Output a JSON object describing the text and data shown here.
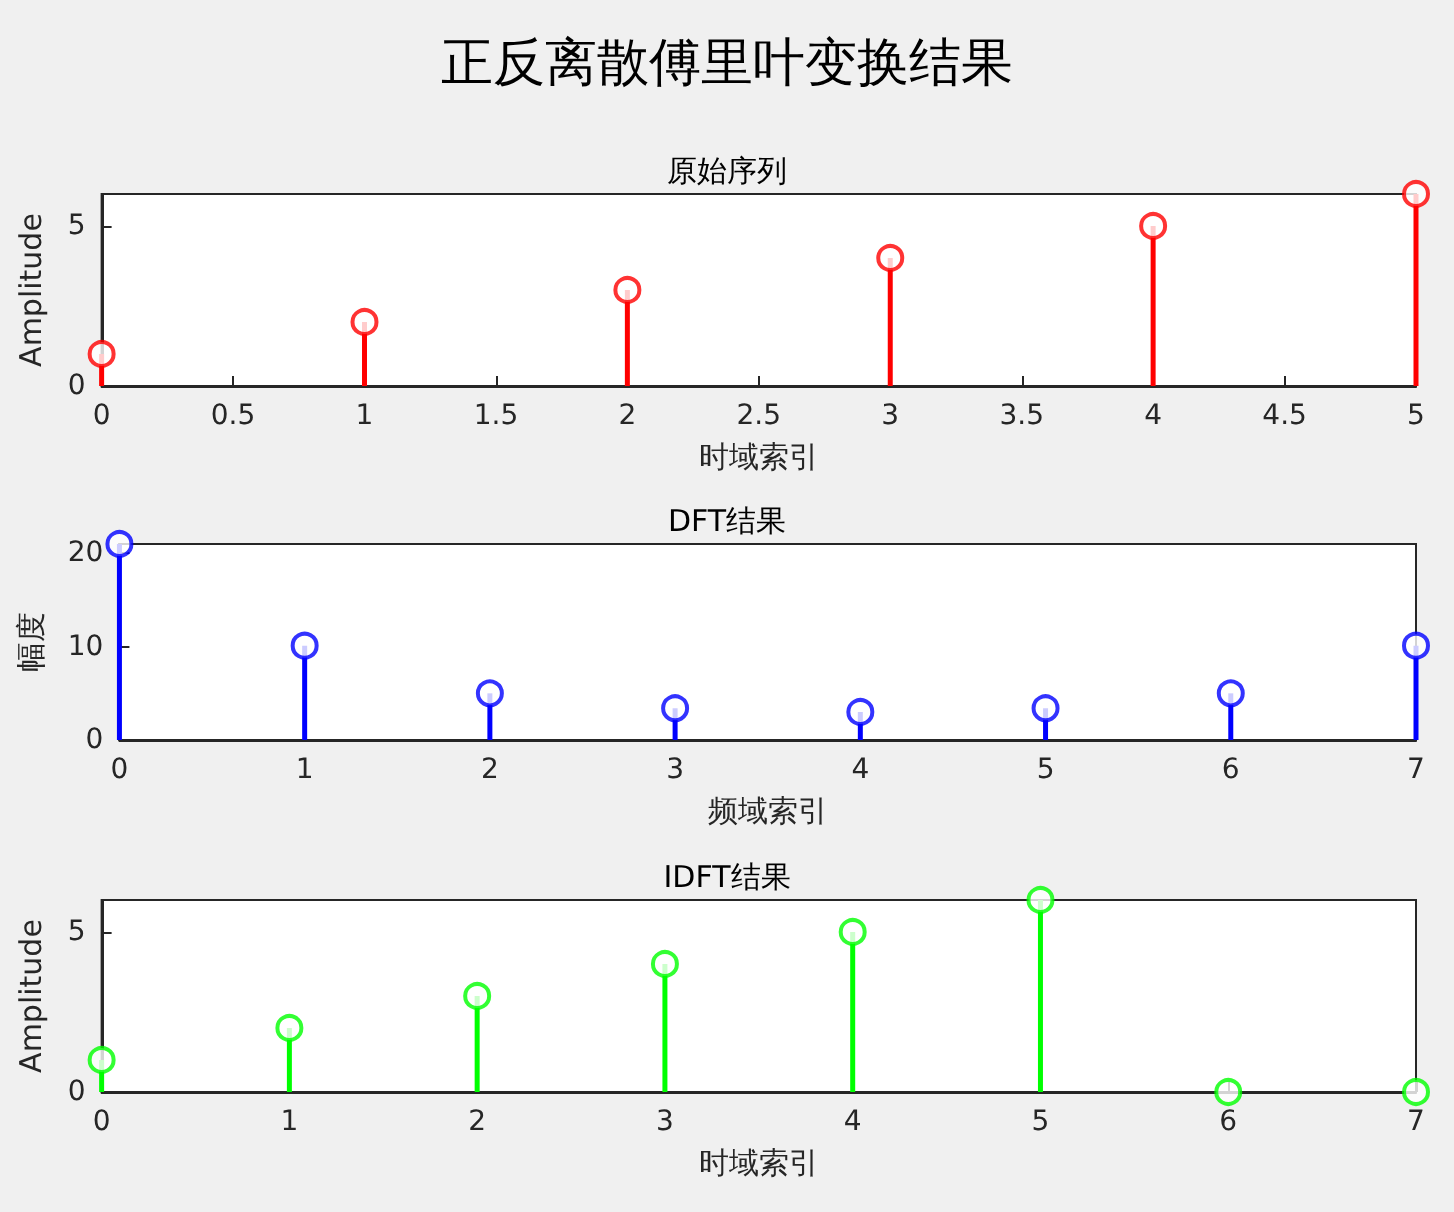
{
  "chart_data": [
    {
      "type": "lollipop",
      "title": "正反离散傅里叶变换结果",
      "subtitle": "原始序列",
      "xlabel": "时域索引",
      "ylabel": "Amplitude",
      "x": [
        0,
        1,
        2,
        3,
        4,
        5
      ],
      "values": [
        1,
        2,
        3,
        4,
        5,
        6
      ],
      "color": "#ff0000",
      "marker": "circle",
      "xlim": [
        0,
        5
      ],
      "ylim": [
        0,
        6
      ],
      "xticks": [
        0,
        0.5,
        1,
        1.5,
        2,
        2.5,
        3,
        3.5,
        4,
        4.5,
        5
      ],
      "yticks": [
        0,
        5
      ]
    },
    {
      "type": "lollipop",
      "title": "DFT结果",
      "xlabel": "频域索引",
      "ylabel": "幅度",
      "x": [
        0,
        1,
        2,
        3,
        4,
        5,
        6,
        7
      ],
      "values": [
        21,
        10.1,
        5,
        3.4,
        3,
        3.4,
        5,
        10.1
      ],
      "color": "#0000ff",
      "marker": "circle",
      "xlim": [
        0,
        7
      ],
      "ylim": [
        0,
        21
      ],
      "xticks": [
        0,
        1,
        2,
        3,
        4,
        5,
        6,
        7
      ],
      "yticks": [
        0,
        10,
        20
      ]
    },
    {
      "type": "lollipop",
      "title": "IDFT结果",
      "xlabel": "时域索引",
      "ylabel": "Amplitude",
      "x": [
        0,
        1,
        2,
        3,
        4,
        5,
        6,
        7
      ],
      "values": [
        1,
        2,
        3,
        4,
        5,
        6,
        0,
        0
      ],
      "color": "#00ff00",
      "marker": "circle",
      "xlim": [
        0,
        7
      ],
      "ylim": [
        0,
        6
      ],
      "xticks": [
        0,
        1,
        2,
        3,
        4,
        5,
        6,
        7
      ],
      "yticks": [
        0,
        5
      ]
    }
  ]
}
